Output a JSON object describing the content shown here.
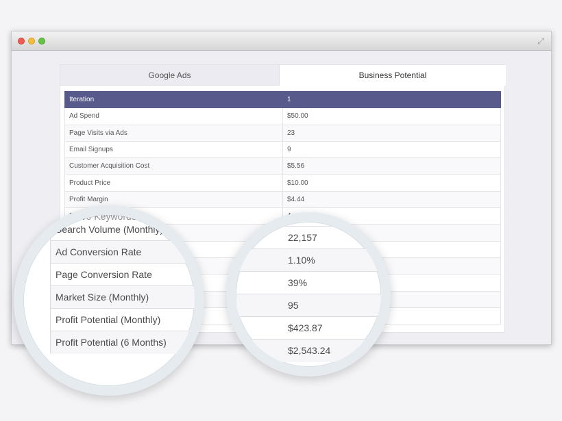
{
  "window": {
    "expand_icon": "expand-icon"
  },
  "tabs": [
    {
      "label": "Google Ads"
    },
    {
      "label": "Business Potential"
    }
  ],
  "table": {
    "header": [
      "Iteration",
      "1"
    ],
    "rows": [
      {
        "label": "Ad Spend",
        "value": "$50.00"
      },
      {
        "label": "Page Visits via Ads",
        "value": "23"
      },
      {
        "label": "Email Signups",
        "value": "9"
      },
      {
        "label": "Customer Acquisition Cost",
        "value": "$5.56"
      },
      {
        "label": "Product Price",
        "value": "$10.00"
      },
      {
        "label": "Profit Margin",
        "value": "$4.44"
      },
      {
        "label": "Effective Keywords",
        "value": "4"
      }
    ]
  },
  "magnified_labels": {
    "partial": "Effective Keywords",
    "rows": [
      "Search Volume (Monthly)",
      "Ad Conversion Rate",
      "Page Conversion Rate",
      "Market Size (Monthly)",
      "Profit Potential (Monthly)",
      "Profit Potential (6 Months)"
    ]
  },
  "magnified_values": {
    "rows": [
      "22,157",
      "1.10%",
      "39%",
      "95",
      "$423.87",
      "$2,543.24"
    ]
  }
}
